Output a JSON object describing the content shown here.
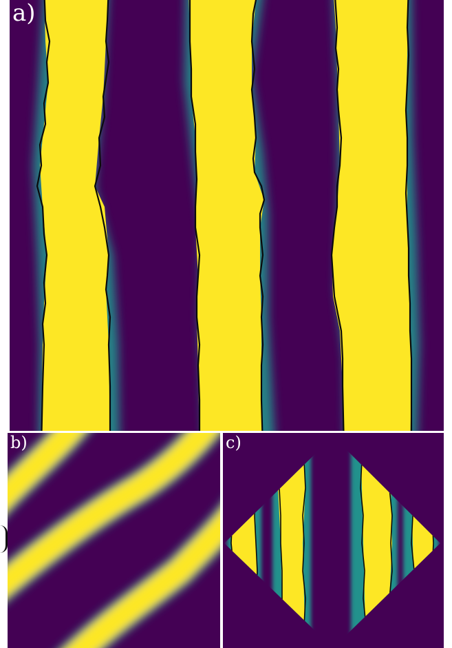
{
  "colors": {
    "background": "#440154",
    "foreground": "#fde725",
    "mid": "#21918c",
    "contour": "#0a0a0a"
  },
  "panels": [
    {
      "id": "a",
      "label": "a)"
    },
    {
      "id": "b",
      "label": "b)"
    },
    {
      "id": "c",
      "label": "c)"
    }
  ]
}
